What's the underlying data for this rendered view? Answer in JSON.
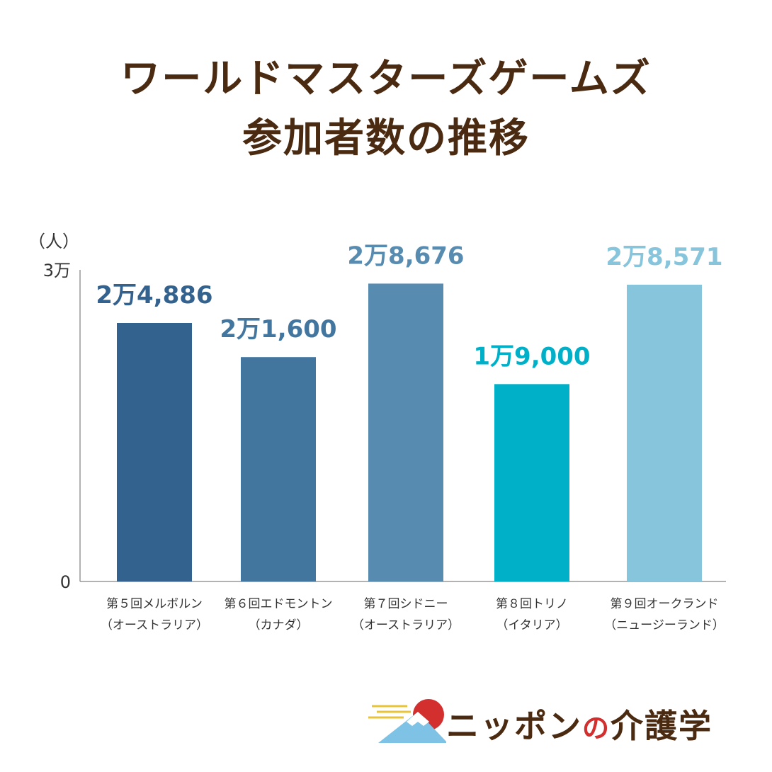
{
  "title": {
    "line1": "ワールドマスターズゲームズ",
    "line2": "参加者数の推移"
  },
  "chart_data": {
    "type": "bar",
    "unit_label": "（人）",
    "ylim": [
      0,
      30000
    ],
    "y_ticks": [
      {
        "value": 0,
        "label": "0"
      },
      {
        "value": 30000,
        "label": "3万"
      }
    ],
    "categories": [
      [
        "第５回メルボルン",
        "（オーストラリア）"
      ],
      [
        "第６回エドモントン",
        "（カナダ）"
      ],
      [
        "第７回シドニー",
        "（オーストラリア）"
      ],
      [
        "第８回トリノ",
        "（イタリア）"
      ],
      [
        "第９回オークランド",
        "（ニュージーランド）"
      ]
    ],
    "values": [
      24886,
      21600,
      28676,
      19000,
      28571
    ],
    "value_labels": [
      "2万4,886",
      "2万1,600",
      "2万8,676",
      "1万9,000",
      "2万8,571"
    ],
    "colors": [
      "#33628f",
      "#42769f",
      "#588bb0",
      "#00b0c8",
      "#86c5dc"
    ],
    "label_colors": [
      "#33628f",
      "#42769f",
      "#588bb0",
      "#00b0c8",
      "#86c5dc"
    ],
    "grid": false,
    "legend": "none"
  },
  "logo": {
    "text_pre": "ニッポン",
    "text_no": "の",
    "text_post": "介護学",
    "sun_color": "#d32f2f",
    "mountain_color": "#7ec3e6"
  }
}
